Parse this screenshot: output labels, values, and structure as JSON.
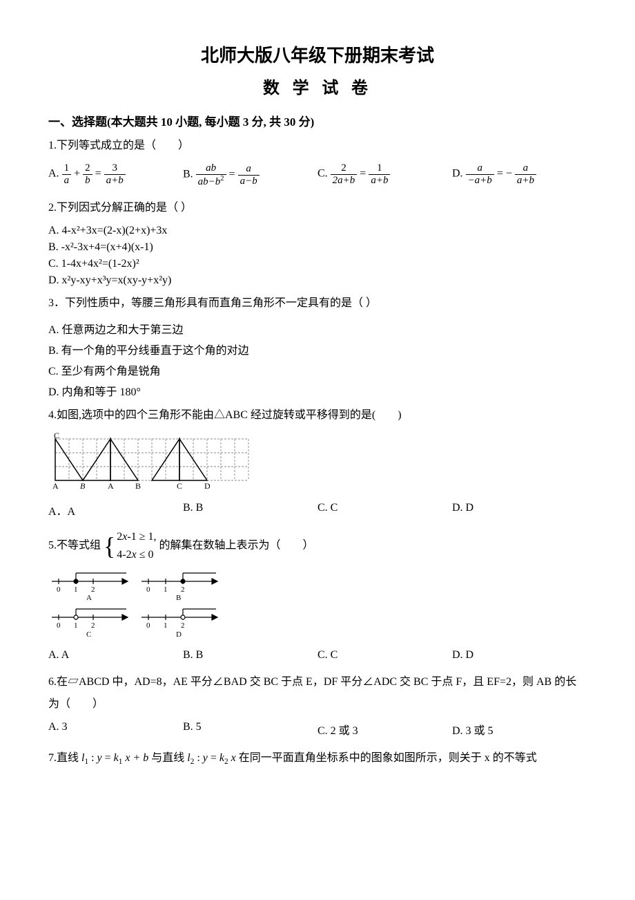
{
  "title": "北师大版八年级下册期末考试",
  "subtitle": "数 学 试 卷",
  "section1_head": "一、选择题(本大题共 10 小题, 每小题 3 分, 共 30 分)",
  "q1": {
    "stem": "1.下列等式成立的是（　　）",
    "A_prefix": "A. ",
    "B_prefix": "B. ",
    "C_prefix": "C. ",
    "D_prefix": "D. ",
    "A_f1n": "1",
    "A_f1d": "a",
    "A_plus": "+",
    "A_f2n": "2",
    "A_f2d": "b",
    "A_eq": "=",
    "A_f3n": "3",
    "A_f3d": "a+b",
    "B_f1n": "ab",
    "B_f1d": "ab−b",
    "B_f1d_sup": "2",
    "B_eq": "=",
    "B_f2n": "a",
    "B_f2d": "a−b",
    "C_f1n": "2",
    "C_f1d": "2a+b",
    "C_eq": "=",
    "C_f2n": "1",
    "C_f2d": "a+b",
    "D_f1n": "a",
    "D_f1d": "−a+b",
    "D_eq": " = −",
    "D_f2n": "a",
    "D_f2d": "a+b"
  },
  "q2": {
    "stem": "2.下列因式分解正确的是（  ）",
    "A": "A. 4-x²+3x=(2-x)(2+x)+3x",
    "B": "B. -x²-3x+4=(x+4)(x-1)",
    "C": "C. 1-4x+4x²=(1-2x)²",
    "D": "D. x²y-xy+x³y=x(xy-y+x²y)"
  },
  "q3": {
    "stem": "3．下列性质中，等腰三角形具有而直角三角形不一定具有的是（  ）",
    "A": "A. 任意两边之和大于第三边",
    "B": "B. 有一个角的平分线垂直于这个角的对边",
    "C": "C. 至少有两个角是锐角",
    "D": "D. 内角和等于 180°"
  },
  "q4": {
    "stem": "4.如图,选项中的四个三角形不能由△ABC 经过旋转或平移得到的是(　　)",
    "A": "A．A",
    "B": "B. B",
    "C": "C. C",
    "D": "D. D",
    "fig": {
      "grid_color": "#666666",
      "line_color": "#000000",
      "cols": 14,
      "rows": 3,
      "cell": 20,
      "labels": [
        "C",
        "A",
        "B",
        "A",
        "B",
        "C",
        "D"
      ]
    }
  },
  "q5": {
    "stem_pre": "5.不等式组",
    "line1_a": "2",
    "line1_b": "x",
    "line1_c": "-1 ≥ 1,",
    "line2_a": "4-2",
    "line2_b": "x",
    "line2_c": " ≤ 0",
    "stem_post": "的解集在数轴上表示为（　　）",
    "A": "A. A",
    "B": "B. B",
    "C": "C. C",
    "D": "D. D",
    "fig": {
      "line_color": "#000000",
      "labels": [
        "0",
        "1",
        "2"
      ],
      "opt_labels": [
        "A",
        "B",
        "C",
        "D"
      ]
    }
  },
  "q6": {
    "stem": "6.在▱ABCD 中，AD=8，AE 平分∠BAD 交 BC 于点 E，DF 平分∠ADC 交 BC 于点 F，且 EF=2，则 AB 的长为（　　）",
    "A": "A. 3",
    "B": "B. 5",
    "C": "C. 2 或 3",
    "D": "D. 3 或 5"
  },
  "q7": {
    "pre": "7.直线 ",
    "l1": "l",
    "l1sub": "1",
    "colon1": " : ",
    "y1": "y",
    "eq1": " = ",
    "k1": "k",
    "k1sub": "1",
    "x1": "x",
    "plusb": " + b",
    "mid": " 与直线 ",
    "l2": "l",
    "l2sub": "2",
    "colon2": " : ",
    "y2": "y",
    "eq2": " = ",
    "k2": "k",
    "k2sub": "2",
    "x2": "x",
    "post": " 在同一平面直角坐标系中的图象如图所示，则关于 x 的不等式"
  }
}
